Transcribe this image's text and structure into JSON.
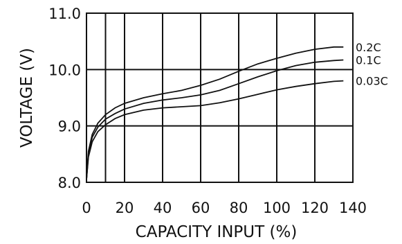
{
  "chart_data": {
    "type": "line",
    "xlabel": "CAPACITY INPUT (%)",
    "ylabel": "VOLTAGE (V)",
    "xlim": [
      0,
      140
    ],
    "ylim": [
      8.0,
      11.0
    ],
    "x_ticks": [
      "0",
      "20",
      "40",
      "60",
      "80",
      "100",
      "120",
      "140"
    ],
    "y_ticks": [
      "8.0",
      "9.0",
      "10.0",
      "11.0"
    ],
    "x_tick_values": [
      0,
      20,
      40,
      60,
      80,
      100,
      120,
      140
    ],
    "y_tick_values": [
      8.0,
      9.0,
      10.0,
      11.0
    ],
    "x_grid": [
      0,
      10,
      20,
      40,
      60,
      80,
      100,
      120,
      140
    ],
    "y_grid": [
      8.0,
      9.0,
      10.0,
      11.0
    ],
    "grid": true,
    "legend": "none (series labeled at right end of each line)",
    "line_color": "#111111",
    "series": [
      {
        "name": "0.2C",
        "x": [
          0,
          1,
          3,
          6,
          10,
          15,
          20,
          30,
          40,
          50,
          60,
          70,
          80,
          90,
          100,
          110,
          120,
          130,
          135
        ],
        "y": [
          8.05,
          8.55,
          8.85,
          9.05,
          9.2,
          9.32,
          9.4,
          9.5,
          9.57,
          9.63,
          9.72,
          9.83,
          9.97,
          10.1,
          10.2,
          10.29,
          10.36,
          10.4,
          10.4
        ]
      },
      {
        "name": "0.1C",
        "x": [
          0,
          1,
          3,
          6,
          10,
          15,
          20,
          30,
          40,
          50,
          60,
          70,
          80,
          90,
          100,
          110,
          120,
          130,
          135
        ],
        "y": [
          8.05,
          8.5,
          8.8,
          8.98,
          9.12,
          9.22,
          9.3,
          9.4,
          9.46,
          9.5,
          9.55,
          9.63,
          9.75,
          9.87,
          9.98,
          10.07,
          10.13,
          10.16,
          10.17
        ]
      },
      {
        "name": "0.03C",
        "x": [
          0,
          1,
          3,
          6,
          10,
          15,
          20,
          30,
          40,
          50,
          60,
          70,
          80,
          90,
          100,
          110,
          120,
          130,
          135
        ],
        "y": [
          8.05,
          8.45,
          8.72,
          8.9,
          9.02,
          9.13,
          9.2,
          9.28,
          9.32,
          9.34,
          9.36,
          9.41,
          9.48,
          9.56,
          9.64,
          9.7,
          9.75,
          9.79,
          9.8
        ]
      }
    ]
  }
}
